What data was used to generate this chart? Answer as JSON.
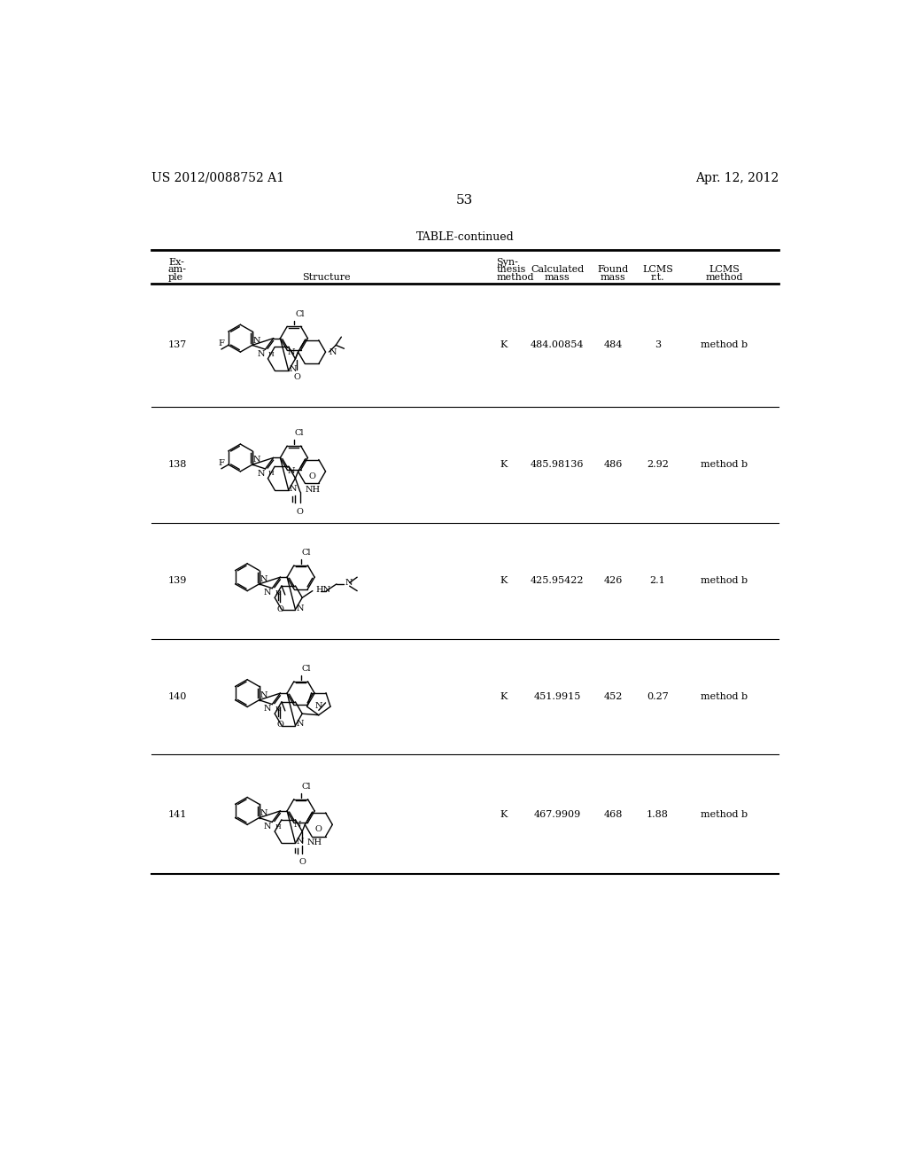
{
  "header_left": "US 2012/0088752 A1",
  "header_right": "Apr. 12, 2012",
  "page_number": "53",
  "table_title": "TABLE-continued",
  "rows": [
    {
      "example": "137",
      "synthesis": "K",
      "calc_mass": "484.00854",
      "found_mass": "484",
      "lcms_rt": "3",
      "lcms_method": "method b"
    },
    {
      "example": "138",
      "synthesis": "K",
      "calc_mass": "485.98136",
      "found_mass": "486",
      "lcms_rt": "2.92",
      "lcms_method": "method b"
    },
    {
      "example": "139",
      "synthesis": "K",
      "calc_mass": "425.95422",
      "found_mass": "426",
      "lcms_rt": "2.1",
      "lcms_method": "method b"
    },
    {
      "example": "140",
      "synthesis": "K",
      "calc_mass": "451.9915",
      "found_mass": "452",
      "lcms_rt": "0.27",
      "lcms_method": "method b"
    },
    {
      "example": "141",
      "synthesis": "K",
      "calc_mass": "467.9909",
      "found_mass": "468",
      "lcms_rt": "1.88",
      "lcms_method": "method b"
    }
  ],
  "bg_color": "#ffffff",
  "text_color": "#000000",
  "line_color": "#000000"
}
